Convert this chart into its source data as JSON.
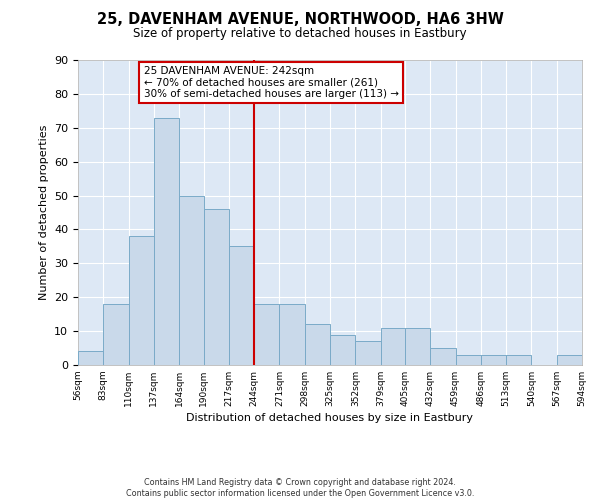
{
  "title": "25, DAVENHAM AVENUE, NORTHWOOD, HA6 3HW",
  "subtitle": "Size of property relative to detached houses in Eastbury",
  "xlabel": "Distribution of detached houses by size in Eastbury",
  "ylabel": "Number of detached properties",
  "bar_color": "#c9d9ea",
  "bar_edge_color": "#7aaac8",
  "background_color": "#dde8f5",
  "grid_color": "#ffffff",
  "vline_value": 244,
  "vline_color": "#cc0000",
  "bin_edges": [
    56,
    83,
    110,
    137,
    164,
    190,
    217,
    244,
    271,
    298,
    325,
    352,
    379,
    405,
    432,
    459,
    486,
    513,
    540,
    567,
    594
  ],
  "bar_heights": [
    4,
    18,
    38,
    73,
    50,
    46,
    35,
    18,
    18,
    12,
    9,
    7,
    11,
    11,
    5,
    3,
    3,
    3,
    0,
    3
  ],
  "ylim": [
    0,
    90
  ],
  "yticks": [
    0,
    10,
    20,
    30,
    40,
    50,
    60,
    70,
    80,
    90
  ],
  "annotation_text": "25 DAVENHAM AVENUE: 242sqm\n← 70% of detached houses are smaller (261)\n30% of semi-detached houses are larger (113) →",
  "annotation_box_color": "#ffffff",
  "annotation_box_edge_color": "#cc0000",
  "footnote1": "Contains HM Land Registry data © Crown copyright and database right 2024.",
  "footnote2": "Contains public sector information licensed under the Open Government Licence v3.0."
}
